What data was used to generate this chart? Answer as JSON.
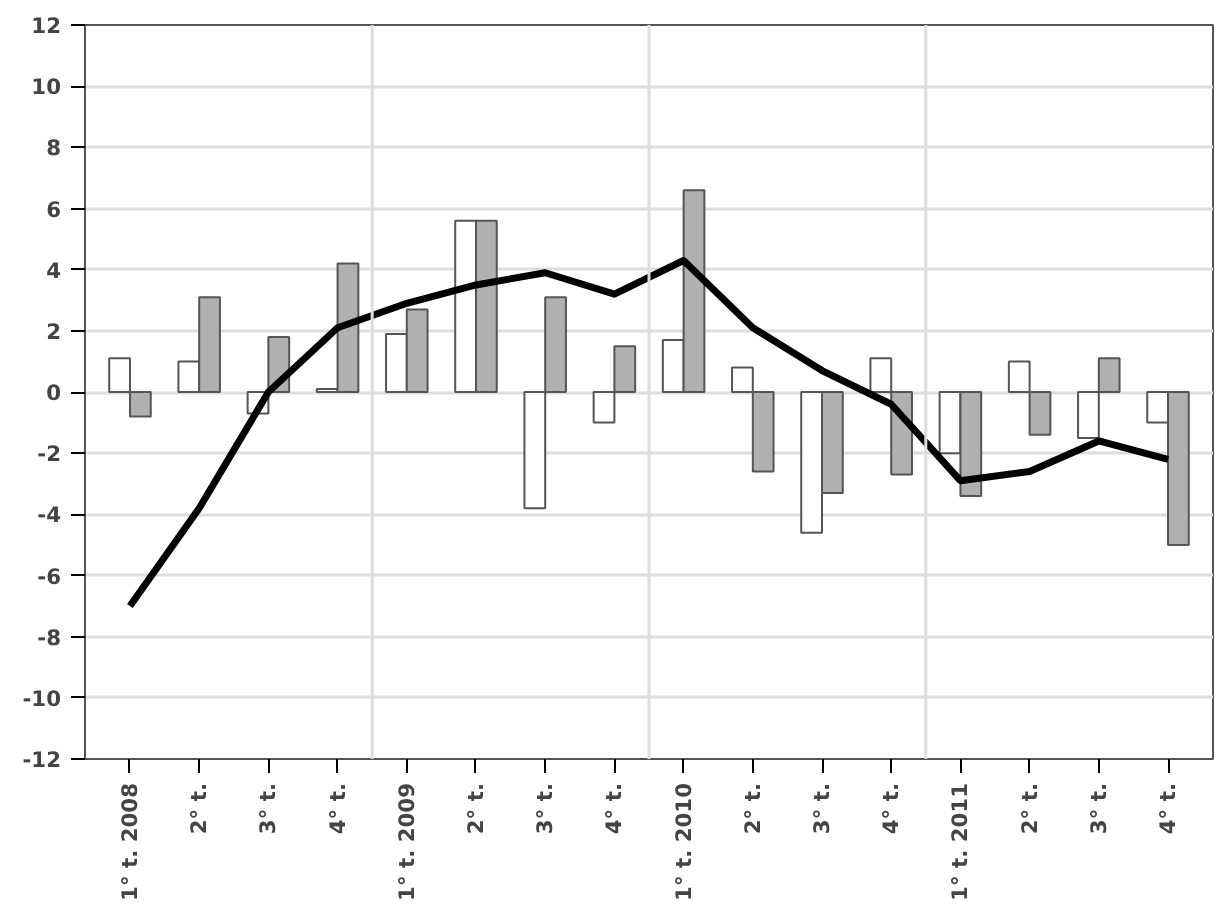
{
  "chart_data": {
    "type": "bar",
    "categories": [
      "1° t. 2008",
      "2° t.",
      "3° t.",
      "4° t.",
      "1° t. 2009",
      "2° t.",
      "3° t.",
      "4° t.",
      "1° t. 2010",
      "2° t.",
      "3° t.",
      "4° t.",
      "1° t. 2011",
      "2° t.",
      "3° t.",
      "4° t."
    ],
    "series": [
      {
        "color": "#ffffff",
        "values": [
          1.1,
          1.0,
          -0.7,
          0.1,
          1.9,
          5.6,
          -3.8,
          -1.0,
          1.7,
          0.8,
          -4.6,
          1.1,
          -2.0,
          1.0,
          -1.5,
          -1.0
        ]
      },
      {
        "color": "#b0b0b0",
        "values": [
          -0.8,
          3.1,
          1.8,
          4.2,
          2.7,
          5.6,
          3.1,
          1.5,
          6.6,
          -2.6,
          -3.3,
          -2.7,
          -3.4,
          -1.4,
          1.1,
          -5.0
        ]
      },
      {
        "type": "line",
        "color": "#000000",
        "values": [
          -7.0,
          -3.8,
          0.0,
          2.1,
          2.9,
          3.5,
          3.9,
          3.2,
          4.3,
          2.1,
          0.7,
          -0.4,
          -2.9,
          -2.6,
          -1.6,
          -2.2
        ]
      }
    ],
    "ylim": [
      -12,
      12
    ],
    "yticks": [
      -12,
      -10,
      -8,
      -6,
      -4,
      -2,
      0,
      2,
      4,
      6,
      8,
      10,
      12
    ],
    "grid": true,
    "marker": "none",
    "line_style": "solid"
  }
}
